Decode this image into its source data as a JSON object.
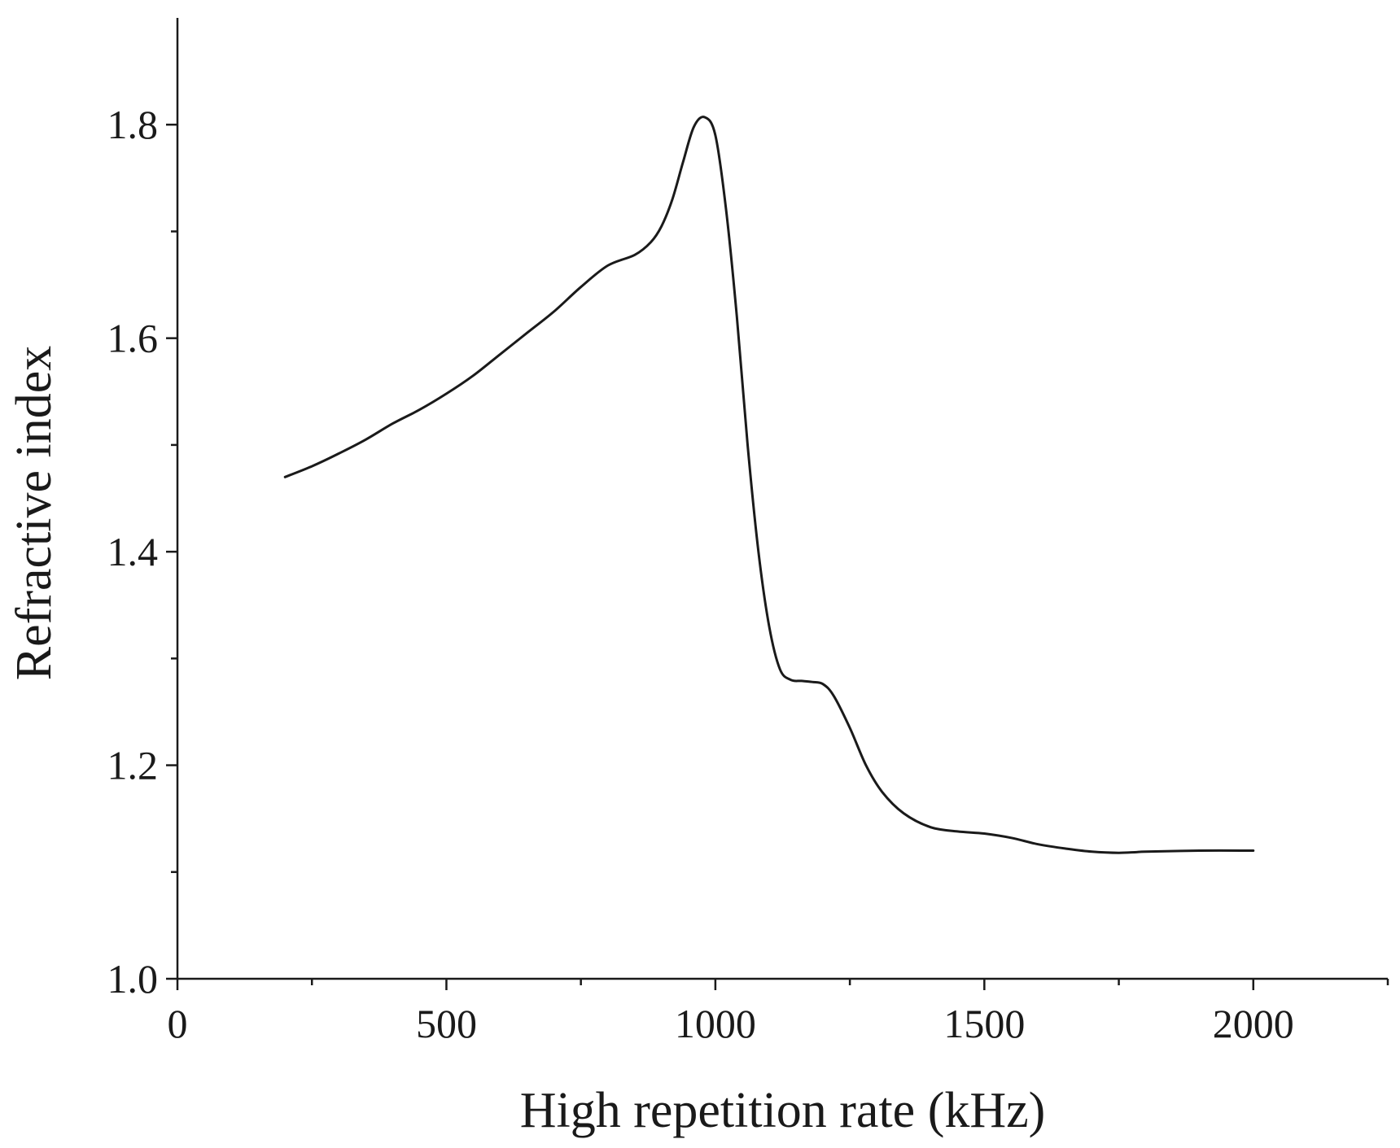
{
  "chart_data": {
    "type": "line",
    "title": "",
    "xlabel": "High repetition rate  (kHz)",
    "ylabel": "Refractive index",
    "xlim": [
      0,
      2250
    ],
    "ylim": [
      1.0,
      1.9
    ],
    "x_ticks": [
      0,
      500,
      1000,
      1500,
      2000
    ],
    "x_tick_labels": [
      "0",
      "500",
      "1000",
      "1500",
      "2000"
    ],
    "x_minor_ticks": [
      250,
      750,
      1250,
      1750,
      2250
    ],
    "y_ticks": [
      1.0,
      1.2,
      1.4,
      1.6,
      1.8
    ],
    "y_tick_labels": [
      "1.0",
      "1.2",
      "1.4",
      "1.6",
      "1.8"
    ],
    "y_minor_ticks": [
      1.1,
      1.3,
      1.5,
      1.7
    ],
    "grid": false,
    "series": [
      {
        "name": "Refractive index",
        "color": "#1a1a1a",
        "x": [
          200,
          250,
          300,
          350,
          400,
          450,
          500,
          550,
          600,
          650,
          700,
          750,
          800,
          850,
          880,
          900,
          920,
          940,
          960,
          980,
          1000,
          1020,
          1040,
          1060,
          1080,
          1100,
          1120,
          1140,
          1160,
          1180,
          1200,
          1220,
          1250,
          1280,
          1310,
          1350,
          1400,
          1450,
          1500,
          1550,
          1600,
          1650,
          1700,
          1750,
          1800,
          1900,
          2000
        ],
        "y": [
          1.47,
          1.48,
          1.492,
          1.505,
          1.52,
          1.533,
          1.548,
          1.565,
          1.585,
          1.605,
          1.625,
          1.648,
          1.668,
          1.678,
          1.69,
          1.705,
          1.73,
          1.765,
          1.798,
          1.807,
          1.79,
          1.72,
          1.62,
          1.5,
          1.4,
          1.33,
          1.29,
          1.28,
          1.279,
          1.278,
          1.276,
          1.265,
          1.235,
          1.2,
          1.175,
          1.155,
          1.142,
          1.138,
          1.136,
          1.132,
          1.126,
          1.122,
          1.119,
          1.118,
          1.119,
          1.12,
          1.12
        ]
      }
    ]
  }
}
